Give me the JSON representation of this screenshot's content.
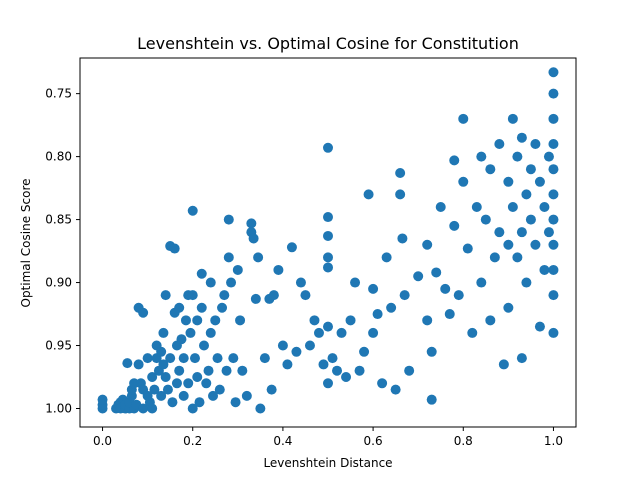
{
  "chart_data": {
    "type": "scatter",
    "title": "Levenshtein vs. Optimal Cosine for Constitution",
    "xlabel": "Levenshtein Distance",
    "ylabel": "Optimal Cosine Score",
    "xlim": [
      -0.05,
      1.05
    ],
    "ylim": [
      1.0147,
      0.7217
    ],
    "y_inverted": true,
    "x_ticks": [
      0.0,
      0.2,
      0.4,
      0.6,
      0.8,
      1.0
    ],
    "x_tick_labels": [
      "0.0",
      "0.2",
      "0.4",
      "0.6",
      "0.8",
      "1.0"
    ],
    "y_ticks": [
      0.75,
      0.8,
      0.85,
      0.9,
      0.95,
      1.0
    ],
    "y_tick_labels": [
      "0.75",
      "0.80",
      "0.85",
      "0.90",
      "0.95",
      "1.00"
    ],
    "grid": false,
    "legend": "none",
    "colors": {
      "marker": "#1f77b4"
    },
    "series": [
      {
        "points": [
          [
            0.0,
            1.0
          ],
          [
            0.0,
            0.997
          ],
          [
            0.0,
            0.993
          ],
          [
            0.03,
            1.0
          ],
          [
            0.035,
            0.997
          ],
          [
            0.04,
            0.995
          ],
          [
            0.04,
            1.0
          ],
          [
            0.045,
            0.993
          ],
          [
            0.05,
            1.0
          ],
          [
            0.05,
            0.997
          ],
          [
            0.055,
            0.964
          ],
          [
            0.06,
            1.0
          ],
          [
            0.06,
            0.995
          ],
          [
            0.065,
            0.99
          ],
          [
            0.065,
            0.985
          ],
          [
            0.07,
            1.0
          ],
          [
            0.07,
            0.98
          ],
          [
            0.075,
            0.997
          ],
          [
            0.08,
            0.92
          ],
          [
            0.08,
            0.965
          ],
          [
            0.085,
            0.98
          ],
          [
            0.09,
            0.924
          ],
          [
            0.09,
            1.0
          ],
          [
            0.09,
            0.985
          ],
          [
            0.1,
            0.96
          ],
          [
            0.1,
            0.99
          ],
          [
            0.105,
            0.995
          ],
          [
            0.11,
            1.0
          ],
          [
            0.11,
            0.975
          ],
          [
            0.115,
            0.985
          ],
          [
            0.12,
            0.95
          ],
          [
            0.12,
            0.96
          ],
          [
            0.125,
            0.97
          ],
          [
            0.13,
            0.955
          ],
          [
            0.13,
            0.99
          ],
          [
            0.135,
            0.94
          ],
          [
            0.135,
            0.965
          ],
          [
            0.14,
            0.91
          ],
          [
            0.14,
            0.975
          ],
          [
            0.145,
            0.985
          ],
          [
            0.15,
            0.96
          ],
          [
            0.15,
            0.871
          ],
          [
            0.155,
            0.995
          ],
          [
            0.16,
            0.924
          ],
          [
            0.16,
            0.873
          ],
          [
            0.165,
            0.95
          ],
          [
            0.165,
            0.98
          ],
          [
            0.17,
            0.92
          ],
          [
            0.17,
            0.97
          ],
          [
            0.175,
            0.945
          ],
          [
            0.18,
            0.96
          ],
          [
            0.18,
            0.99
          ],
          [
            0.185,
            0.93
          ],
          [
            0.19,
            0.91
          ],
          [
            0.19,
            0.98
          ],
          [
            0.195,
            0.94
          ],
          [
            0.2,
            0.843
          ],
          [
            0.2,
            0.91
          ],
          [
            0.2,
            1.0
          ],
          [
            0.205,
            0.96
          ],
          [
            0.21,
            0.93
          ],
          [
            0.21,
            0.975
          ],
          [
            0.215,
            0.995
          ],
          [
            0.22,
            0.893
          ],
          [
            0.22,
            0.92
          ],
          [
            0.225,
            0.95
          ],
          [
            0.23,
            0.98
          ],
          [
            0.235,
            0.97
          ],
          [
            0.24,
            0.9
          ],
          [
            0.24,
            0.94
          ],
          [
            0.245,
            0.99
          ],
          [
            0.25,
            0.93
          ],
          [
            0.255,
            0.96
          ],
          [
            0.26,
            0.985
          ],
          [
            0.265,
            0.92
          ],
          [
            0.27,
            0.91
          ],
          [
            0.275,
            0.97
          ],
          [
            0.28,
            0.88
          ],
          [
            0.28,
            0.85
          ],
          [
            0.285,
            0.9
          ],
          [
            0.29,
            0.96
          ],
          [
            0.295,
            0.995
          ],
          [
            0.3,
            0.89
          ],
          [
            0.305,
            0.93
          ],
          [
            0.31,
            0.97
          ],
          [
            0.32,
            0.99
          ],
          [
            0.33,
            0.853
          ],
          [
            0.33,
            0.86
          ],
          [
            0.335,
            0.865
          ],
          [
            0.34,
            0.913
          ],
          [
            0.345,
            0.88
          ],
          [
            0.35,
            1.0
          ],
          [
            0.36,
            0.96
          ],
          [
            0.37,
            0.913
          ],
          [
            0.375,
            0.985
          ],
          [
            0.38,
            0.91
          ],
          [
            0.39,
            0.89
          ],
          [
            0.4,
            0.95
          ],
          [
            0.41,
            0.965
          ],
          [
            0.42,
            0.872
          ],
          [
            0.43,
            0.955
          ],
          [
            0.44,
            0.9
          ],
          [
            0.45,
            0.91
          ],
          [
            0.46,
            0.95
          ],
          [
            0.47,
            0.93
          ],
          [
            0.48,
            0.94
          ],
          [
            0.49,
            0.965
          ],
          [
            0.5,
            0.793
          ],
          [
            0.5,
            0.848
          ],
          [
            0.5,
            0.863
          ],
          [
            0.5,
            0.88
          ],
          [
            0.5,
            0.888
          ],
          [
            0.5,
            0.935
          ],
          [
            0.5,
            0.98
          ],
          [
            0.51,
            0.96
          ],
          [
            0.52,
            0.97
          ],
          [
            0.53,
            0.94
          ],
          [
            0.54,
            0.975
          ],
          [
            0.55,
            0.93
          ],
          [
            0.56,
            0.9
          ],
          [
            0.57,
            0.97
          ],
          [
            0.58,
            0.955
          ],
          [
            0.59,
            0.83
          ],
          [
            0.6,
            0.905
          ],
          [
            0.6,
            0.94
          ],
          [
            0.61,
            0.925
          ],
          [
            0.62,
            0.98
          ],
          [
            0.63,
            0.88
          ],
          [
            0.64,
            0.92
          ],
          [
            0.65,
            0.985
          ],
          [
            0.66,
            0.813
          ],
          [
            0.66,
            0.83
          ],
          [
            0.665,
            0.865
          ],
          [
            0.67,
            0.91
          ],
          [
            0.68,
            0.97
          ],
          [
            0.7,
            0.895
          ],
          [
            0.72,
            0.87
          ],
          [
            0.72,
            0.93
          ],
          [
            0.73,
            0.955
          ],
          [
            0.73,
            0.993
          ],
          [
            0.74,
            0.892
          ],
          [
            0.75,
            0.84
          ],
          [
            0.76,
            0.905
          ],
          [
            0.77,
            0.925
          ],
          [
            0.78,
            0.803
          ],
          [
            0.78,
            0.855
          ],
          [
            0.79,
            0.91
          ],
          [
            0.8,
            0.77
          ],
          [
            0.8,
            0.82
          ],
          [
            0.81,
            0.873
          ],
          [
            0.82,
            0.94
          ],
          [
            0.83,
            0.84
          ],
          [
            0.84,
            0.8
          ],
          [
            0.84,
            0.9
          ],
          [
            0.85,
            0.85
          ],
          [
            0.86,
            0.81
          ],
          [
            0.86,
            0.93
          ],
          [
            0.87,
            0.88
          ],
          [
            0.88,
            0.79
          ],
          [
            0.88,
            0.86
          ],
          [
            0.89,
            0.965
          ],
          [
            0.9,
            0.82
          ],
          [
            0.9,
            0.87
          ],
          [
            0.9,
            0.92
          ],
          [
            0.91,
            0.77
          ],
          [
            0.91,
            0.84
          ],
          [
            0.92,
            0.8
          ],
          [
            0.92,
            0.88
          ],
          [
            0.93,
            0.785
          ],
          [
            0.93,
            0.86
          ],
          [
            0.93,
            0.96
          ],
          [
            0.94,
            0.83
          ],
          [
            0.94,
            0.9
          ],
          [
            0.95,
            0.81
          ],
          [
            0.95,
            0.85
          ],
          [
            0.96,
            0.79
          ],
          [
            0.96,
            0.87
          ],
          [
            0.97,
            0.82
          ],
          [
            0.97,
            0.935
          ],
          [
            0.98,
            0.84
          ],
          [
            0.98,
            0.89
          ],
          [
            0.99,
            0.8
          ],
          [
            0.99,
            0.86
          ],
          [
            1.0,
            0.733
          ],
          [
            1.0,
            0.75
          ],
          [
            1.0,
            0.77
          ],
          [
            1.0,
            0.79
          ],
          [
            1.0,
            0.81
          ],
          [
            1.0,
            0.83
          ],
          [
            1.0,
            0.85
          ],
          [
            1.0,
            0.87
          ],
          [
            1.0,
            0.89
          ],
          [
            1.0,
            0.91
          ],
          [
            1.0,
            0.94
          ]
        ]
      }
    ]
  }
}
